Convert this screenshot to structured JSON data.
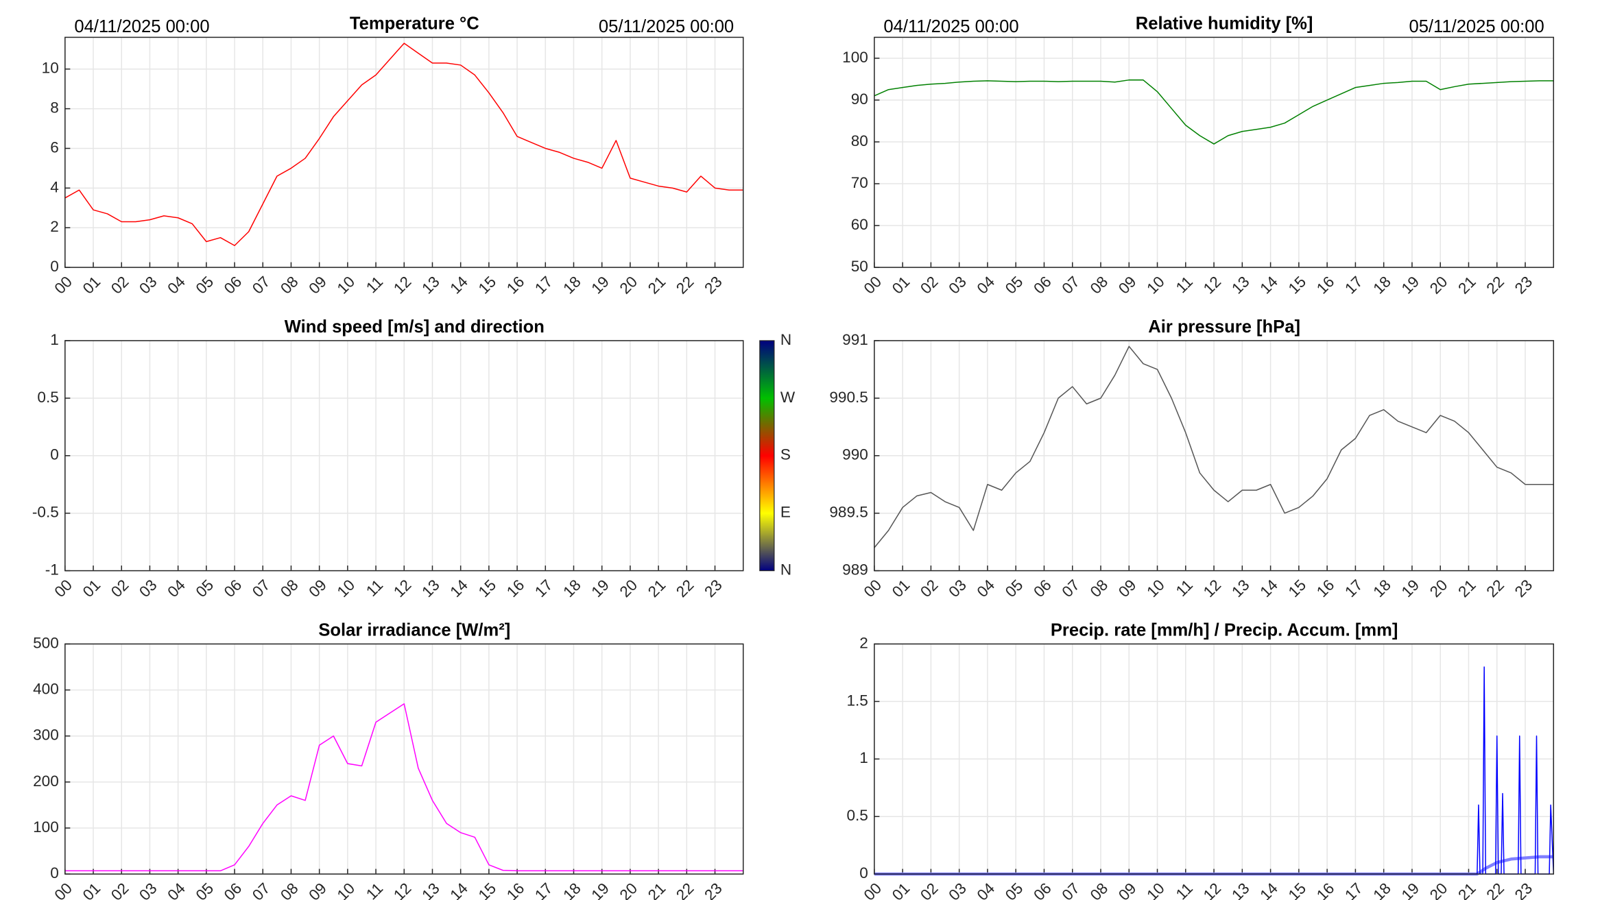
{
  "chart_data": [
    {
      "type": "line",
      "title": "Temperature °C",
      "date_start": "04/11/2025 00:00",
      "date_end": "05/11/2025 00:00",
      "x": [
        0,
        0.5,
        1,
        1.5,
        2,
        2.5,
        3,
        3.5,
        4,
        4.5,
        5,
        5.5,
        6,
        6.5,
        7,
        7.5,
        8,
        8.5,
        9,
        9.5,
        10,
        10.5,
        11,
        11.5,
        12,
        12.5,
        13,
        13.5,
        14,
        14.5,
        15,
        15.5,
        16,
        16.5,
        17,
        17.5,
        18,
        18.5,
        19,
        19.5,
        20,
        20.5,
        21,
        21.5,
        22,
        22.5,
        23,
        23.5,
        24
      ],
      "series": [
        {
          "name": "Temperature",
          "color": "#ff0000",
          "values": [
            3.5,
            3.9,
            2.9,
            2.7,
            2.3,
            2.3,
            2.4,
            2.6,
            2.5,
            2.2,
            1.3,
            1.5,
            1.1,
            1.8,
            3.2,
            4.6,
            5,
            5.5,
            6.5,
            7.6,
            8.4,
            9.2,
            9.7,
            10.5,
            11.3,
            10.8,
            10.3,
            10.3,
            10.2,
            9.7,
            8.8,
            7.8,
            6.6,
            6.3,
            6,
            5.8,
            5.5,
            5.3,
            5.0,
            6.4,
            4.5,
            4.3,
            4.1,
            4.0,
            3.8,
            4.6,
            4.0,
            3.9,
            3.9
          ]
        }
      ],
      "xlim": [
        0,
        24
      ],
      "ylim": [
        0,
        11.6
      ],
      "yticks": [
        0,
        2,
        4,
        6,
        8,
        10
      ],
      "grid": true,
      "xticks": [
        {
          "value": 0,
          "label": "00"
        },
        {
          "value": 1,
          "label": "01"
        },
        {
          "value": 2,
          "label": "02"
        },
        {
          "value": 3,
          "label": "03"
        },
        {
          "value": 4,
          "label": "04"
        },
        {
          "value": 5,
          "label": "05"
        },
        {
          "value": 6,
          "label": "06"
        },
        {
          "value": 7,
          "label": "07"
        },
        {
          "value": 8,
          "label": "08"
        },
        {
          "value": 9,
          "label": "09"
        },
        {
          "value": 10,
          "label": "10"
        },
        {
          "value": 11,
          "label": "11"
        },
        {
          "value": 12,
          "label": "12"
        },
        {
          "value": 13,
          "label": "13"
        },
        {
          "value": 14,
          "label": "14"
        },
        {
          "value": 15,
          "label": "15"
        },
        {
          "value": 16,
          "label": "16"
        },
        {
          "value": 17,
          "label": "17"
        },
        {
          "value": 18,
          "label": "18"
        },
        {
          "value": 19,
          "label": "19"
        },
        {
          "value": 20,
          "label": "20"
        },
        {
          "value": 21,
          "label": "21"
        },
        {
          "value": 22,
          "label": "22"
        },
        {
          "value": 23,
          "label": "23"
        }
      ]
    },
    {
      "type": "line",
      "title": "Relative humidity [%]",
      "date_start": "04/11/2025 00:00",
      "date_end": "05/11/2025 00:00",
      "x": [
        0,
        0.5,
        1,
        1.5,
        2,
        2.5,
        3,
        3.5,
        4,
        4.5,
        5,
        5.5,
        6,
        6.5,
        7,
        7.5,
        8,
        8.5,
        9,
        9.5,
        10,
        10.5,
        11,
        11.5,
        12,
        12.5,
        13,
        13.5,
        14,
        14.5,
        15,
        15.5,
        16,
        16.5,
        17,
        17.5,
        18,
        18.5,
        19,
        19.5,
        20,
        20.5,
        21,
        21.5,
        22,
        22.5,
        23,
        23.5,
        24
      ],
      "series": [
        {
          "name": "Relative humidity",
          "color": "#008000",
          "values": [
            91,
            92.5,
            93,
            93.5,
            93.8,
            94,
            94.3,
            94.5,
            94.6,
            94.5,
            94.4,
            94.5,
            94.5,
            94.4,
            94.5,
            94.5,
            94.5,
            94.3,
            94.8,
            94.8,
            92,
            88,
            84,
            81.5,
            79.5,
            81.5,
            82.5,
            83,
            83.5,
            84.5,
            86.5,
            88.5,
            90,
            91.5,
            93,
            93.5,
            94,
            94.2,
            94.5,
            94.5,
            92.5,
            93.2,
            93.8,
            94,
            94.2,
            94.4,
            94.5,
            94.6,
            94.6
          ]
        }
      ],
      "xlim": [
        0,
        24
      ],
      "ylim": [
        50,
        105
      ],
      "yticks": [
        50,
        60,
        70,
        80,
        90,
        100
      ],
      "grid": true,
      "xticks": [
        {
          "value": 0,
          "label": "00"
        },
        {
          "value": 1,
          "label": "01"
        },
        {
          "value": 2,
          "label": "02"
        },
        {
          "value": 3,
          "label": "03"
        },
        {
          "value": 4,
          "label": "04"
        },
        {
          "value": 5,
          "label": "05"
        },
        {
          "value": 6,
          "label": "06"
        },
        {
          "value": 7,
          "label": "07"
        },
        {
          "value": 8,
          "label": "08"
        },
        {
          "value": 9,
          "label": "09"
        },
        {
          "value": 10,
          "label": "10"
        },
        {
          "value": 11,
          "label": "11"
        },
        {
          "value": 12,
          "label": "12"
        },
        {
          "value": 13,
          "label": "13"
        },
        {
          "value": 14,
          "label": "14"
        },
        {
          "value": 15,
          "label": "15"
        },
        {
          "value": 16,
          "label": "16"
        },
        {
          "value": 17,
          "label": "17"
        },
        {
          "value": 18,
          "label": "18"
        },
        {
          "value": 19,
          "label": "19"
        },
        {
          "value": 20,
          "label": "20"
        },
        {
          "value": 21,
          "label": "21"
        },
        {
          "value": 22,
          "label": "22"
        },
        {
          "value": 23,
          "label": "23"
        }
      ]
    },
    {
      "type": "line",
      "title": "Wind speed [m/s] and direction",
      "series": [],
      "colorbar": {
        "labels": [
          "N",
          "W",
          "S",
          "E",
          "N"
        ]
      },
      "xlim": [
        0,
        24
      ],
      "ylim": [
        -1,
        1
      ],
      "yticks": [
        -1,
        -0.5,
        0,
        0.5,
        1
      ],
      "grid": true,
      "xticks": [
        {
          "value": 0,
          "label": "00"
        },
        {
          "value": 1,
          "label": "01"
        },
        {
          "value": 2,
          "label": "02"
        },
        {
          "value": 3,
          "label": "03"
        },
        {
          "value": 4,
          "label": "04"
        },
        {
          "value": 5,
          "label": "05"
        },
        {
          "value": 6,
          "label": "06"
        },
        {
          "value": 7,
          "label": "07"
        },
        {
          "value": 8,
          "label": "08"
        },
        {
          "value": 9,
          "label": "09"
        },
        {
          "value": 10,
          "label": "10"
        },
        {
          "value": 11,
          "label": "11"
        },
        {
          "value": 12,
          "label": "12"
        },
        {
          "value": 13,
          "label": "13"
        },
        {
          "value": 14,
          "label": "14"
        },
        {
          "value": 15,
          "label": "15"
        },
        {
          "value": 16,
          "label": "16"
        },
        {
          "value": 17,
          "label": "17"
        },
        {
          "value": 18,
          "label": "18"
        },
        {
          "value": 19,
          "label": "19"
        },
        {
          "value": 20,
          "label": "20"
        },
        {
          "value": 21,
          "label": "21"
        },
        {
          "value": 22,
          "label": "22"
        },
        {
          "value": 23,
          "label": "23"
        }
      ]
    },
    {
      "type": "line",
      "title": "Air pressure [hPa]",
      "x": [
        0,
        0.5,
        1,
        1.5,
        2,
        2.5,
        3,
        3.5,
        4,
        4.5,
        5,
        5.5,
        6,
        6.5,
        7,
        7.5,
        8,
        8.5,
        9,
        9.5,
        10,
        10.5,
        11,
        11.5,
        12,
        12.5,
        13,
        13.5,
        14,
        14.5,
        15,
        15.5,
        16,
        16.5,
        17,
        17.5,
        18,
        18.5,
        19,
        19.5,
        20,
        20.5,
        21,
        21.5,
        22,
        22.5,
        23,
        23.5,
        24
      ],
      "series": [
        {
          "name": "Air pressure",
          "color": "#555555",
          "values": [
            989.2,
            989.35,
            989.55,
            989.65,
            989.68,
            989.6,
            989.55,
            989.35,
            989.75,
            989.7,
            989.85,
            989.95,
            990.2,
            990.5,
            990.6,
            990.45,
            990.5,
            990.7,
            990.95,
            990.8,
            990.75,
            990.5,
            990.2,
            989.85,
            989.7,
            989.6,
            989.7,
            989.7,
            989.75,
            989.5,
            989.55,
            989.65,
            989.8,
            990.05,
            990.15,
            990.35,
            990.4,
            990.3,
            990.25,
            990.2,
            990.35,
            990.3,
            990.2,
            990.05,
            989.9,
            989.85,
            989.75,
            989.75,
            989.75
          ]
        }
      ],
      "xlim": [
        0,
        24
      ],
      "ylim": [
        989,
        991
      ],
      "yticks": [
        989,
        989.5,
        990,
        990.5,
        991
      ],
      "grid": true,
      "xticks": [
        {
          "value": 0,
          "label": "00"
        },
        {
          "value": 1,
          "label": "01"
        },
        {
          "value": 2,
          "label": "02"
        },
        {
          "value": 3,
          "label": "03"
        },
        {
          "value": 4,
          "label": "04"
        },
        {
          "value": 5,
          "label": "05"
        },
        {
          "value": 6,
          "label": "06"
        },
        {
          "value": 7,
          "label": "07"
        },
        {
          "value": 8,
          "label": "08"
        },
        {
          "value": 9,
          "label": "09"
        },
        {
          "value": 10,
          "label": "10"
        },
        {
          "value": 11,
          "label": "11"
        },
        {
          "value": 12,
          "label": "12"
        },
        {
          "value": 13,
          "label": "13"
        },
        {
          "value": 14,
          "label": "14"
        },
        {
          "value": 15,
          "label": "15"
        },
        {
          "value": 16,
          "label": "16"
        },
        {
          "value": 17,
          "label": "17"
        },
        {
          "value": 18,
          "label": "18"
        },
        {
          "value": 19,
          "label": "19"
        },
        {
          "value": 20,
          "label": "20"
        },
        {
          "value": 21,
          "label": "21"
        },
        {
          "value": 22,
          "label": "22"
        },
        {
          "value": 23,
          "label": "23"
        }
      ]
    },
    {
      "type": "line",
      "title": "Solar irradiance [W/m²]",
      "x": [
        0,
        0.5,
        1,
        1.5,
        2,
        2.5,
        3,
        3.5,
        4,
        4.5,
        5,
        5.5,
        6,
        6.5,
        7,
        7.5,
        8,
        8.5,
        9,
        9.5,
        10,
        10.5,
        11,
        11.5,
        12,
        12.5,
        13,
        13.5,
        14,
        14.5,
        15,
        15.5,
        16,
        16.5,
        17,
        17.5,
        18,
        18.5,
        19,
        19.5,
        20,
        20.5,
        21,
        21.5,
        22,
        22.5,
        23,
        23.5,
        24
      ],
      "series": [
        {
          "name": "Solar irradiance",
          "color": "#ff00ff",
          "values": [
            7,
            7,
            7,
            7,
            7,
            7,
            7,
            7,
            7,
            7,
            7,
            7,
            20,
            60,
            110,
            150,
            170,
            160,
            280,
            300,
            240,
            235,
            330,
            350,
            370,
            230,
            160,
            110,
            90,
            80,
            20,
            8,
            7,
            7,
            7,
            7,
            7,
            7,
            7,
            7,
            7,
            7,
            7,
            7,
            7,
            7,
            7,
            7,
            7
          ]
        }
      ],
      "xlim": [
        0,
        24
      ],
      "ylim": [
        0,
        500
      ],
      "yticks": [
        0,
        100,
        200,
        300,
        400,
        500
      ],
      "grid": true,
      "xticks": [
        {
          "value": 0,
          "label": "00"
        },
        {
          "value": 1,
          "label": "01"
        },
        {
          "value": 2,
          "label": "02"
        },
        {
          "value": 3,
          "label": "03"
        },
        {
          "value": 4,
          "label": "04"
        },
        {
          "value": 5,
          "label": "05"
        },
        {
          "value": 6,
          "label": "06"
        },
        {
          "value": 7,
          "label": "07"
        },
        {
          "value": 8,
          "label": "08"
        },
        {
          "value": 9,
          "label": "09"
        },
        {
          "value": 10,
          "label": "10"
        },
        {
          "value": 11,
          "label": "11"
        },
        {
          "value": 12,
          "label": "12"
        },
        {
          "value": 13,
          "label": "13"
        },
        {
          "value": 14,
          "label": "14"
        },
        {
          "value": 15,
          "label": "15"
        },
        {
          "value": 16,
          "label": "16"
        },
        {
          "value": 17,
          "label": "17"
        },
        {
          "value": 18,
          "label": "18"
        },
        {
          "value": 19,
          "label": "19"
        },
        {
          "value": 20,
          "label": "20"
        },
        {
          "value": 21,
          "label": "21"
        },
        {
          "value": 22,
          "label": "22"
        },
        {
          "value": 23,
          "label": "23"
        }
      ]
    },
    {
      "type": "line",
      "title": "Precip. rate [mm/h] / Precip. Accum. [mm]",
      "series": [
        {
          "name": "Precip. Accum.",
          "color": "#7f7fff",
          "width": 3,
          "x": [
            0,
            21.3,
            21.6,
            22.0,
            22.5,
            23.0,
            23.5,
            24
          ],
          "values": [
            0,
            0,
            0.05,
            0.1,
            0.13,
            0.14,
            0.15,
            0.15
          ]
        },
        {
          "name": "Precip. rate",
          "color": "#0000ff",
          "width": 1,
          "x": [
            0,
            21.3,
            21.35,
            21.4,
            21.5,
            21.55,
            21.6,
            21.7,
            21.95,
            22.0,
            22.05,
            22.15,
            22.2,
            22.25,
            22.75,
            22.8,
            22.85,
            23.35,
            23.4,
            23.45,
            23.85,
            23.9,
            24
          ],
          "values": [
            0,
            0,
            0.6,
            0,
            0,
            1.8,
            0,
            0,
            0,
            1.2,
            0,
            0,
            0.7,
            0,
            0,
            1.2,
            0,
            0,
            1.2,
            0,
            0,
            0.6,
            0
          ]
        }
      ],
      "xlim": [
        0,
        24
      ],
      "ylim": [
        0,
        2
      ],
      "yticks": [
        0,
        0.5,
        1,
        1.5,
        2
      ],
      "grid": true,
      "xticks": [
        {
          "value": 0,
          "label": "00"
        },
        {
          "value": 1,
          "label": "01"
        },
        {
          "value": 2,
          "label": "02"
        },
        {
          "value": 3,
          "label": "03"
        },
        {
          "value": 4,
          "label": "04"
        },
        {
          "value": 5,
          "label": "05"
        },
        {
          "value": 6,
          "label": "06"
        },
        {
          "value": 7,
          "label": "07"
        },
        {
          "value": 8,
          "label": "08"
        },
        {
          "value": 9,
          "label": "09"
        },
        {
          "value": 10,
          "label": "10"
        },
        {
          "value": 11,
          "label": "11"
        },
        {
          "value": 12,
          "label": "12"
        },
        {
          "value": 13,
          "label": "13"
        },
        {
          "value": 14,
          "label": "14"
        },
        {
          "value": 15,
          "label": "15"
        },
        {
          "value": 16,
          "label": "16"
        },
        {
          "value": 17,
          "label": "17"
        },
        {
          "value": 18,
          "label": "18"
        },
        {
          "value": 19,
          "label": "19"
        },
        {
          "value": 20,
          "label": "20"
        },
        {
          "value": 21,
          "label": "21"
        },
        {
          "value": 22,
          "label": "22"
        },
        {
          "value": 23,
          "label": "23"
        }
      ]
    }
  ]
}
